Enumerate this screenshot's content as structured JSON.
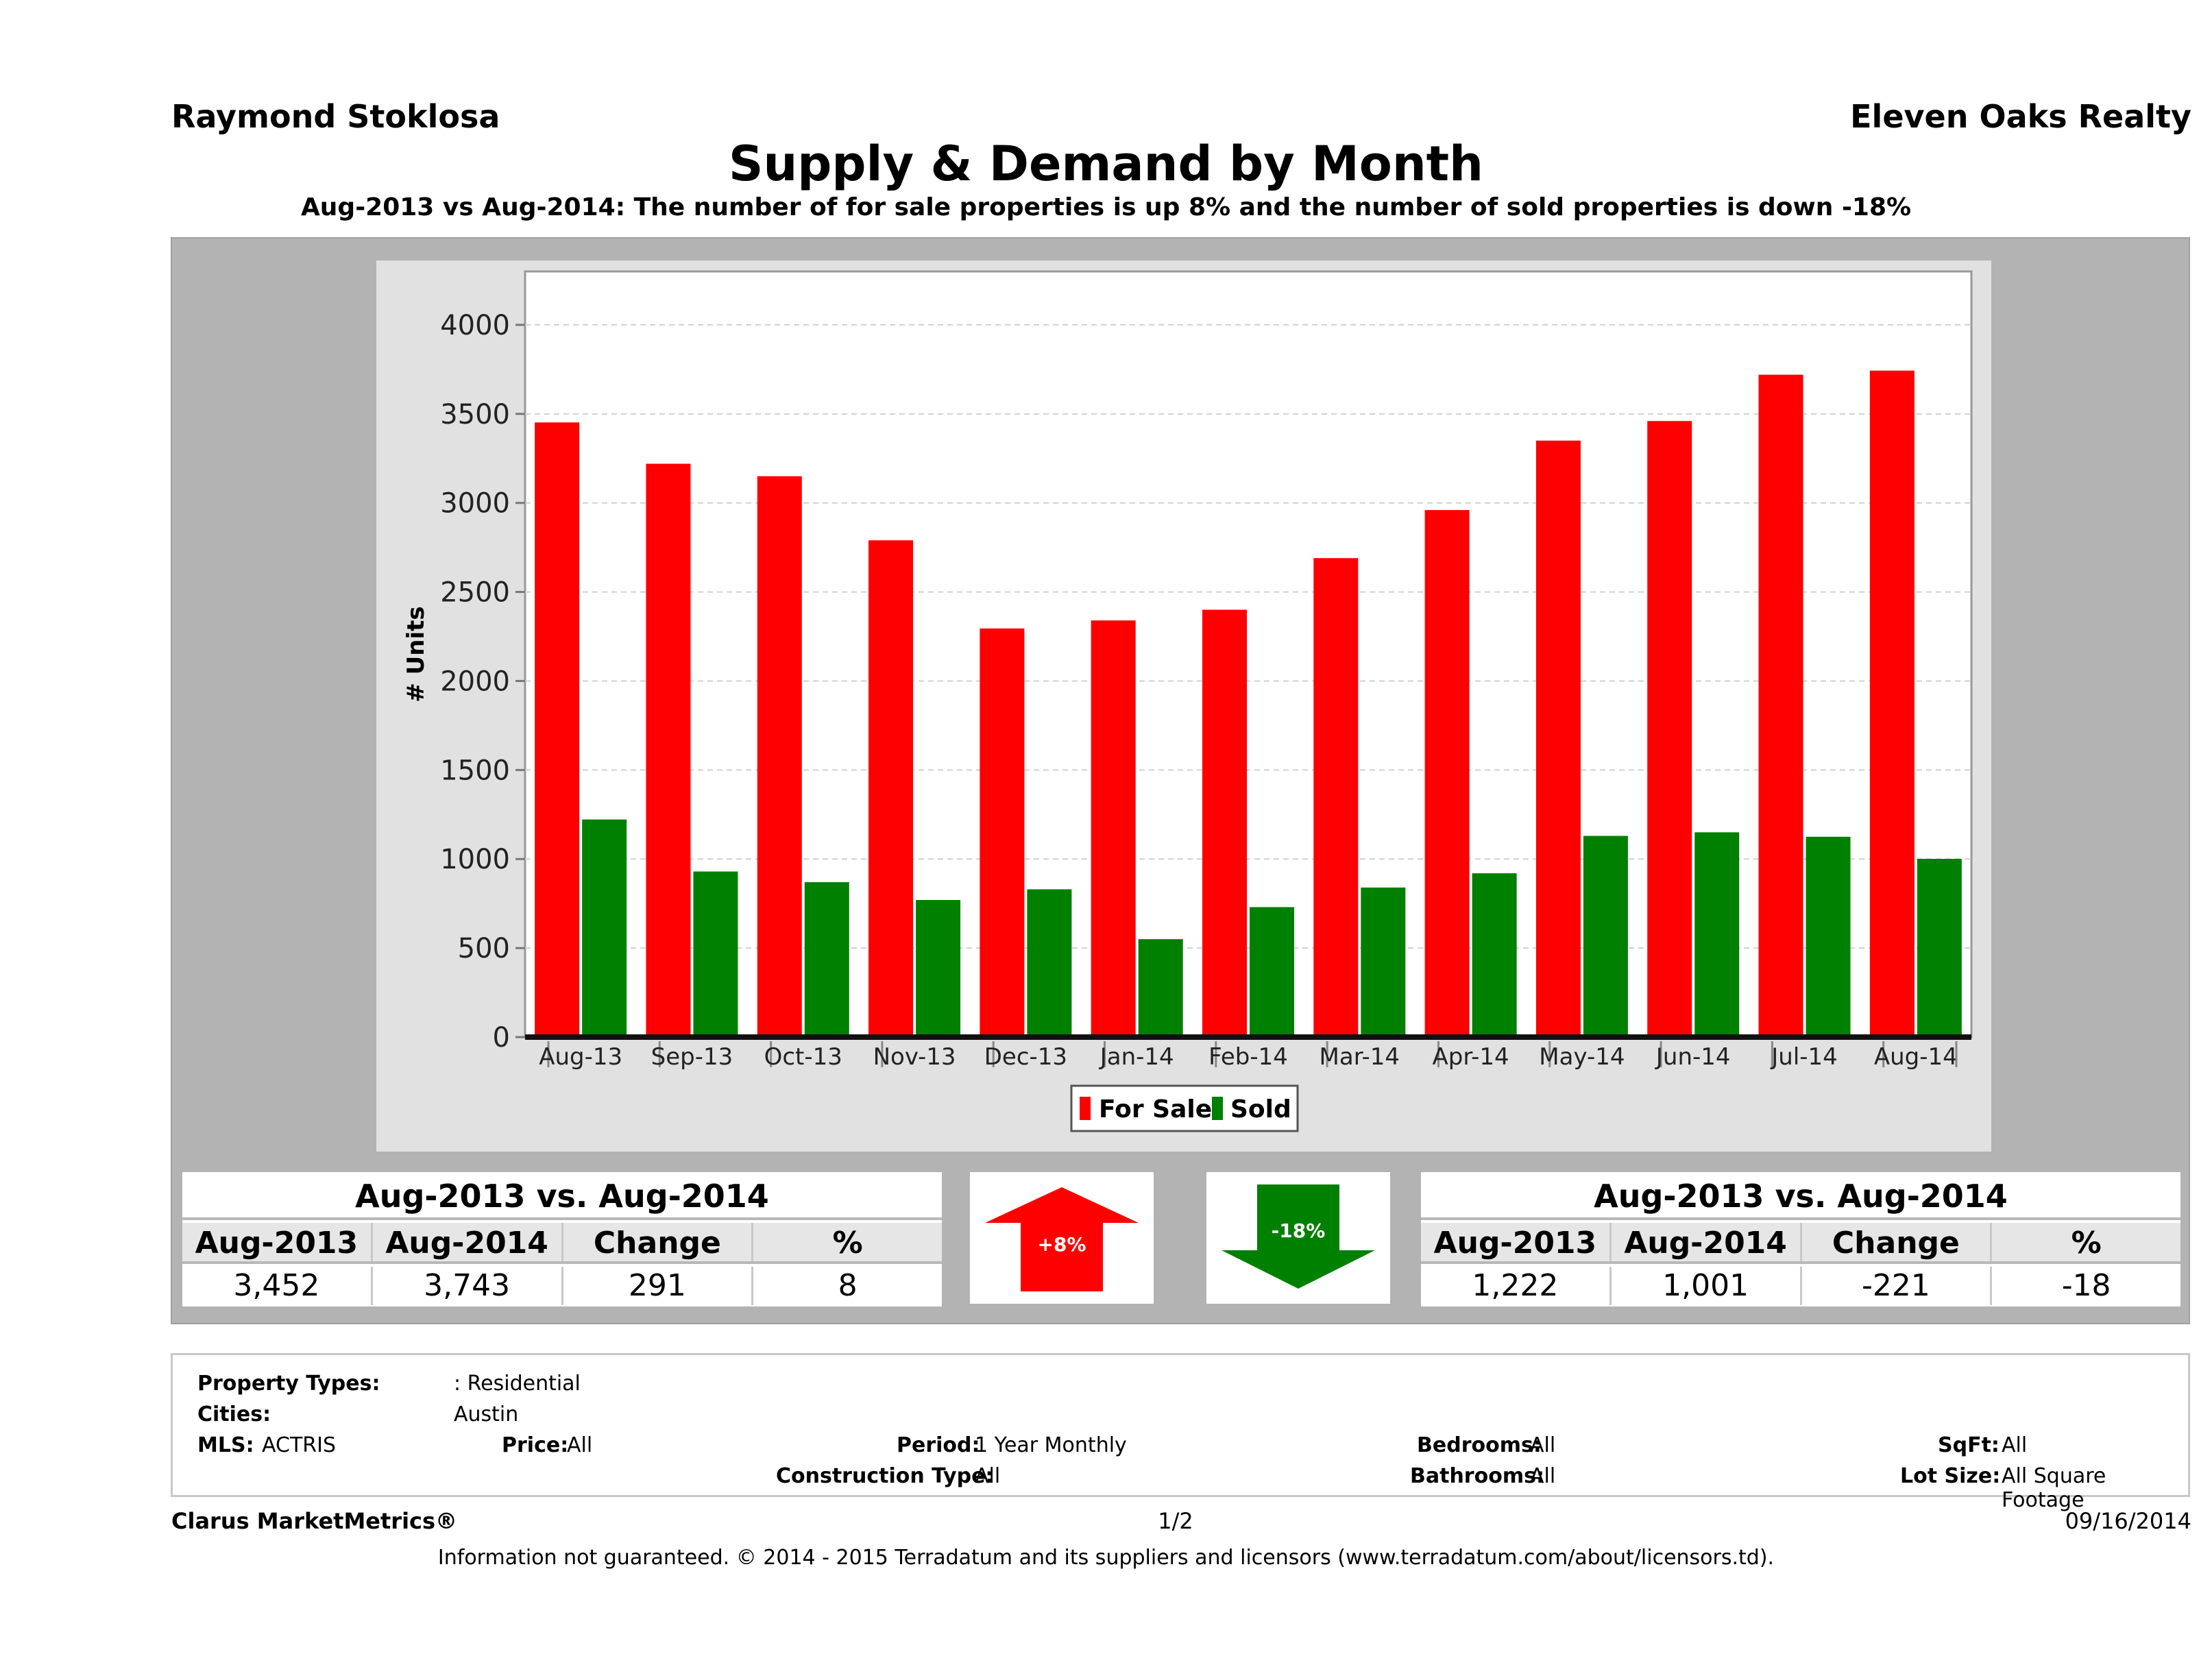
{
  "header": {
    "agent_name": "Raymond Stoklosa",
    "brokerage": "Eleven Oaks Realty"
  },
  "chart_data": {
    "type": "bar",
    "title": "Supply & Demand by Month",
    "subtitle": "Aug-2013 vs Aug-2014: The number of for sale properties is up 8% and the number of sold properties is down -18%",
    "xlabel": "",
    "ylabel": "# Units",
    "ylim": [
      0,
      4300
    ],
    "yticks": [
      0,
      500,
      1000,
      1500,
      2000,
      2500,
      3000,
      3500,
      4000
    ],
    "grid": true,
    "legend_position": "bottom-center",
    "categories": [
      "Aug-13",
      "Sep-13",
      "Oct-13",
      "Nov-13",
      "Dec-13",
      "Jan-14",
      "Feb-14",
      "Mar-14",
      "Apr-14",
      "May-14",
      "Jun-14",
      "Jul-14",
      "Aug-14"
    ],
    "series": [
      {
        "name": "For Sale",
        "color": "#ff0000",
        "values": [
          3452,
          3220,
          3150,
          2790,
          2295,
          2340,
          2400,
          2690,
          2960,
          3350,
          3460,
          3720,
          3743
        ]
      },
      {
        "name": "Sold",
        "color": "#008000",
        "values": [
          1222,
          930,
          870,
          770,
          830,
          550,
          730,
          840,
          920,
          1130,
          1150,
          1125,
          1001
        ]
      }
    ]
  },
  "summary_for_sale": {
    "title": "Aug-2013 vs. Aug-2014",
    "headers": [
      "Aug-2013",
      "Aug-2014",
      "Change",
      "%"
    ],
    "values": [
      "3,452",
      "3,743",
      "291",
      "8"
    ],
    "badge": "+8%",
    "direction": "up",
    "color": "#ff0000"
  },
  "summary_sold": {
    "title": "Aug-2013 vs. Aug-2014",
    "headers": [
      "Aug-2013",
      "Aug-2014",
      "Change",
      "%"
    ],
    "values": [
      "1,222",
      "1,001",
      "-221",
      "-18"
    ],
    "badge": "-18%",
    "direction": "down",
    "color": "#008000"
  },
  "criteria": {
    "property_types_label": "Property Types:",
    "property_types_value": ": Residential",
    "cities_label": "Cities:",
    "cities_value": "Austin",
    "mls_label": "MLS:",
    "mls_value": "ACTRIS",
    "price_label": "Price:",
    "price_value": "All",
    "period_label": "Period:",
    "period_value": "1 Year Monthly",
    "construction_label": "Construction Type:",
    "construction_value": "All",
    "bedrooms_label": "Bedrooms:",
    "bedrooms_value": "All",
    "bathrooms_label": "Bathrooms:",
    "bathrooms_value": "All",
    "sqft_label": "SqFt:",
    "sqft_value": "All",
    "lot_label": "Lot Size:",
    "lot_value": "All Square Footage"
  },
  "footer": {
    "product": "Clarus MarketMetrics®",
    "page": "1/2",
    "date": "09/16/2014",
    "disclaimer": "Information not guaranteed. © 2014 - 2015 Terradatum and its suppliers and licensors (www.terradatum.com/about/licensors.td)."
  }
}
